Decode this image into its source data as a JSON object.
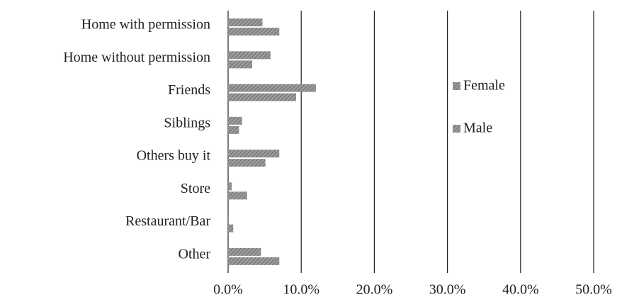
{
  "chart_data": {
    "type": "hbar",
    "categories": [
      "Home with permission",
      "Home without permission",
      "Friends",
      "Siblings",
      "Others buy it",
      "Store",
      "Restaurant/Bar",
      "Other"
    ],
    "series": [
      {
        "name": "Female",
        "color": "#9a9a9a",
        "values": [
          4.7,
          5.8,
          12.0,
          1.9,
          7.0,
          0.5,
          0.1,
          4.5
        ]
      },
      {
        "name": "Male",
        "color": "#9a9a9a",
        "values": [
          7.0,
          3.3,
          9.3,
          1.5,
          5.1,
          2.6,
          0.7,
          7.0
        ]
      }
    ],
    "xlim": [
      0,
      50
    ],
    "xticks": [
      {
        "value": 0,
        "label": "0.0%"
      },
      {
        "value": 10,
        "label": "10.0%"
      },
      {
        "value": 20,
        "label": "20.0%"
      },
      {
        "value": 30,
        "label": "30.0%"
      },
      {
        "value": 40,
        "label": "40.0%"
      },
      {
        "value": 50,
        "label": "50.0%"
      }
    ],
    "grid": true,
    "legend": "right"
  }
}
